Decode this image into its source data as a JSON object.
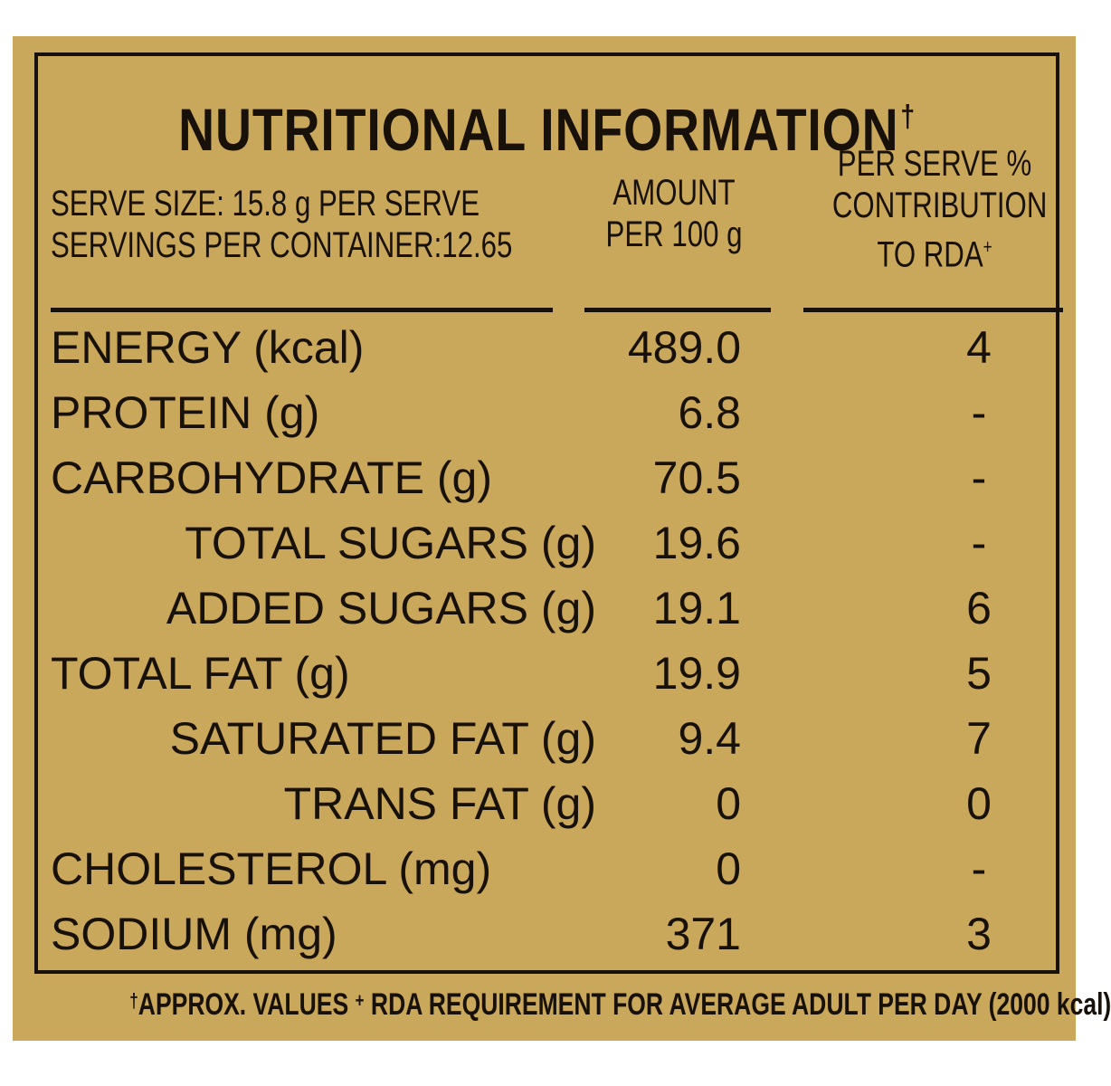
{
  "title": "NUTRITIONAL INFORMATION",
  "title_mark": "†",
  "header": {
    "serve_size": "SERVE SIZE: 15.8 g PER SERVE",
    "servings": "SERVINGS PER CONTAINER:12.65",
    "amount_line1": "AMOUNT",
    "amount_line2": "PER 100 g",
    "rda_line1": "PER SERVE %",
    "rda_line2": "CONTRIBUTION",
    "rda_line3": "TO RDA",
    "rda_mark": "+"
  },
  "rows": [
    {
      "name": "ENERGY (kcal)",
      "amount": "489.0",
      "rda": "4",
      "indent": false
    },
    {
      "name": "PROTEIN (g)",
      "amount": "6.8",
      "rda": "-",
      "indent": false
    },
    {
      "name": "CARBOHYDRATE (g)",
      "amount": "70.5",
      "rda": "-",
      "indent": false
    },
    {
      "name": "TOTAL SUGARS (g)",
      "amount": "19.6",
      "rda": "-",
      "indent": true
    },
    {
      "name": "ADDED SUGARS (g)",
      "amount": "19.1",
      "rda": "6",
      "indent": true
    },
    {
      "name": "TOTAL FAT (g)",
      "amount": "19.9",
      "rda": "5",
      "indent": false
    },
    {
      "name": "SATURATED FAT (g)",
      "amount": "9.4",
      "rda": "7",
      "indent": true
    },
    {
      "name": "TRANS FAT (g)",
      "amount": "0",
      "rda": "0",
      "indent": true
    },
    {
      "name": "CHOLESTEROL (mg)",
      "amount": "0",
      "rda": "-",
      "indent": false
    },
    {
      "name": "SODIUM (mg)",
      "amount": "371",
      "rda": "3",
      "indent": false
    }
  ],
  "footer": {
    "mark1": "†",
    "note1": "APPROX. VALUES",
    "mark2": "+",
    "note2": "RDA REQUIREMENT FOR AVERAGE ADULT PER DAY (2000 kcal)"
  },
  "colors": {
    "background": "#c9a75b",
    "ink": "#171109"
  }
}
